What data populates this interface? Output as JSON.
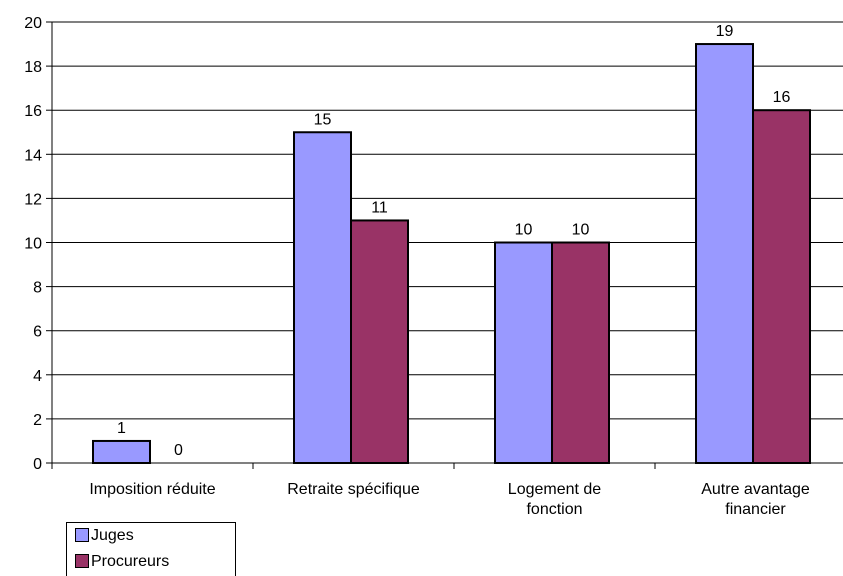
{
  "chart_data": {
    "type": "bar",
    "categories": [
      [
        "Imposition réduite"
      ],
      [
        "Retraite spécifique"
      ],
      [
        "Logement de",
        "fonction"
      ],
      [
        "Autre avantage",
        "financier"
      ]
    ],
    "series": [
      {
        "name": "Juges",
        "color": "#9999ff",
        "values": [
          1,
          15,
          10,
          19
        ]
      },
      {
        "name": "Procureurs",
        "color": "#993366",
        "values": [
          0,
          11,
          10,
          16
        ]
      }
    ],
    "ylim": [
      0,
      20
    ],
    "yticks": [
      0,
      2,
      4,
      6,
      8,
      10,
      12,
      14,
      16,
      18,
      20
    ],
    "grid": true,
    "legend_position": "bottom-left"
  }
}
